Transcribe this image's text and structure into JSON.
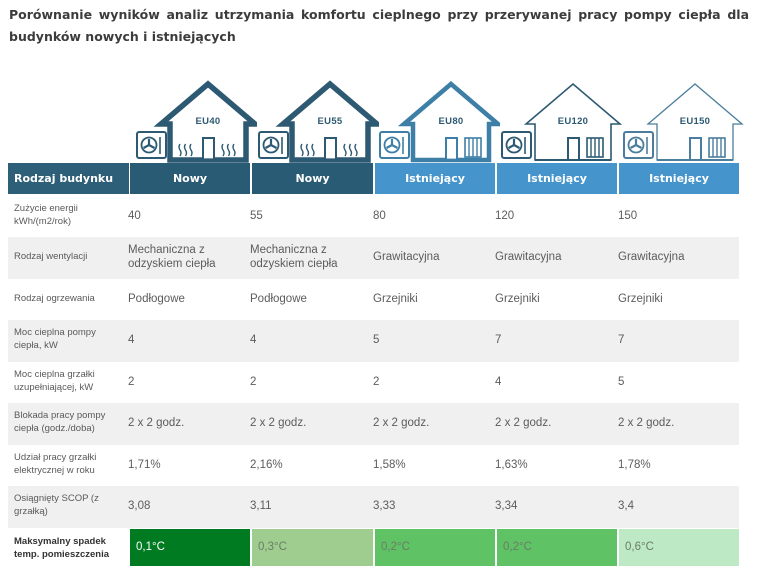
{
  "title": "Porównanie wyników analiz utrzymania komfortu cieplnego przy przerywanej pracy pompy ciepła dla budynków nowych i istniejących",
  "houses": [
    {
      "label": "EU40",
      "type": "underfloor",
      "style": "dark"
    },
    {
      "label": "EU55",
      "type": "underfloor",
      "style": "dark"
    },
    {
      "label": "EU80",
      "type": "radiator",
      "style": "medium"
    },
    {
      "label": "EU120",
      "type": "radiator",
      "style": "outline"
    },
    {
      "label": "EU150",
      "type": "radiator",
      "style": "outline-light"
    }
  ],
  "header": {
    "first": "Rodzaj budynku",
    "columns": [
      "Nowy",
      "Nowy",
      "Istniejący",
      "Istniejący",
      "Istniejący"
    ]
  },
  "rows": [
    {
      "label": "Zużycie energii kWh/(m2/rok)",
      "values": [
        "40",
        "55",
        "80",
        "120",
        "150"
      ]
    },
    {
      "label": "Rodzaj wentylacji",
      "values": [
        "Mechaniczna z odzyskiem ciepła",
        "Mechaniczna z odzyskiem ciepła",
        "Grawitacyjna",
        "Grawitacyjna",
        "Grawitacyjna"
      ]
    },
    {
      "label": "Rodzaj ogrzewania",
      "values": [
        "Podłogowe",
        "Podłogowe",
        "Grzejniki",
        "Grzejniki",
        "Grzejniki"
      ]
    },
    {
      "label": "Moc cieplna pompy ciepła, kW",
      "values": [
        "4",
        "4",
        "5",
        "7",
        "7"
      ]
    },
    {
      "label": "Moc cieplna grzałki uzupełniającej, kW",
      "values": [
        "2",
        "2",
        "2",
        "4",
        "5"
      ]
    },
    {
      "label": "Blokada pracy pompy ciepła (godz./doba)",
      "values": [
        "2 x 2 godz.",
        "2 x 2 godz.",
        "2 x 2 godz.",
        "2 x 2 godz.",
        "2 x 2 godz."
      ]
    },
    {
      "label": "Udział pracy grzałki elektrycznej w roku",
      "values": [
        "1,71%",
        "2,16%",
        "1,58%",
        "1,63%",
        "1,78%"
      ]
    },
    {
      "label": "Osiągnięty SCOP (z grzałką)",
      "values": [
        "3,08",
        "3,11",
        "3,33",
        "3,34",
        "3,4"
      ]
    }
  ],
  "last_row": {
    "label": "Maksymalny spadek temp. pomieszczenia",
    "values": [
      "0,1°C",
      "0,3°C",
      "0,2°C",
      "0,2°C",
      "0,6°C"
    ]
  },
  "colors": {
    "header_dark": "#2e5f78",
    "header_mid": "#295b74",
    "header_light": "#4594cc",
    "house_dark": "#2d5a72",
    "house_medium": "#3d7fa6",
    "house_light": "#6aa6cf",
    "row_shade": "#f0f0f0",
    "highlight": [
      "#007b22",
      "#9fcd8f",
      "#5fc264",
      "#5fc264",
      "#bdeac4"
    ],
    "highlight_text": [
      "#ffffff",
      "#6a7d66",
      "#6a7d66",
      "#6a7d66",
      "#6a7d66"
    ]
  }
}
